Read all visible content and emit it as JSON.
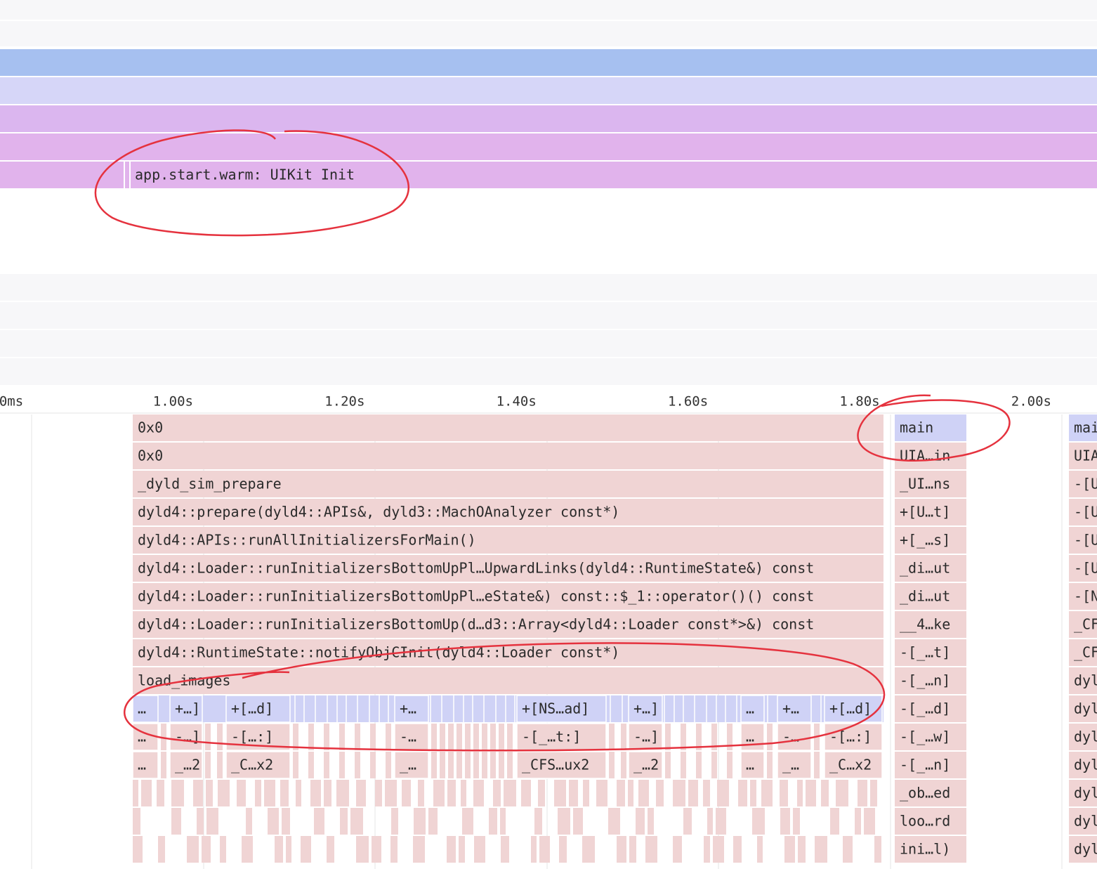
{
  "span": {
    "label": "app.start.warm: UIKit Init"
  },
  "axis": {
    "ticks": [
      "0ms",
      "1.00s",
      "1.20s",
      "1.40s",
      "1.60s",
      "1.80s",
      "2.00s"
    ]
  },
  "flame": {
    "main_stack": [
      "0x0",
      "0x0",
      "_dyld_sim_prepare",
      "dyld4::prepare(dyld4::APIs&, dyld3::MachOAnalyzer const*)",
      "dyld4::APIs::runAllInitializersForMain()",
      "dyld4::Loader::runInitializersBottomUpPl…UpwardLinks(dyld4::RuntimeState&) const",
      "dyld4::Loader::runInitializersBottomUpPl…eState&) const::$_1::operator()() const",
      "dyld4::Loader::runInitializersBottomUp(d…d3::Array<dyld4::Loader const*>&) const",
      "dyld4::RuntimeState::notifyObjCInit(dyld4::Loader const*)",
      "load_images"
    ],
    "row_11": [
      "…",
      "+…]",
      "+[…d]",
      "+…",
      "+[NS…ad]",
      "+…]",
      "…",
      "+…",
      "+[…d]"
    ],
    "row_12": [
      "…",
      "-…]",
      "-[…:]",
      "-…",
      "-[_…t:]",
      "-…]",
      "…",
      "-…",
      "-[…:]"
    ],
    "row_13": [
      "…",
      "_…2",
      "_C…x2",
      "_…",
      "_CFS…ux2",
      "_…2",
      "…",
      "_…",
      "_C…x2"
    ],
    "side_stack": [
      "main",
      "UIA…in",
      "_UI…ns",
      "+[U…t]",
      "+[_…s]",
      "_di…ut",
      "_di…ut",
      "__4…ke",
      "-[_…t]",
      "-[_…n]",
      "-[_…d]",
      "-[_…w]",
      "-[_…n]",
      "_ob…ed",
      "loo…rd",
      "ini…l)"
    ],
    "far_stack": [
      "mai",
      "UIA",
      "-[U",
      "-[U",
      "-[U",
      "-[U",
      "-[N",
      "_CF",
      "_CF",
      "dyl",
      "dyl",
      "dyl",
      "dyl",
      "dyl",
      "dyl",
      "dyl"
    ]
  }
}
